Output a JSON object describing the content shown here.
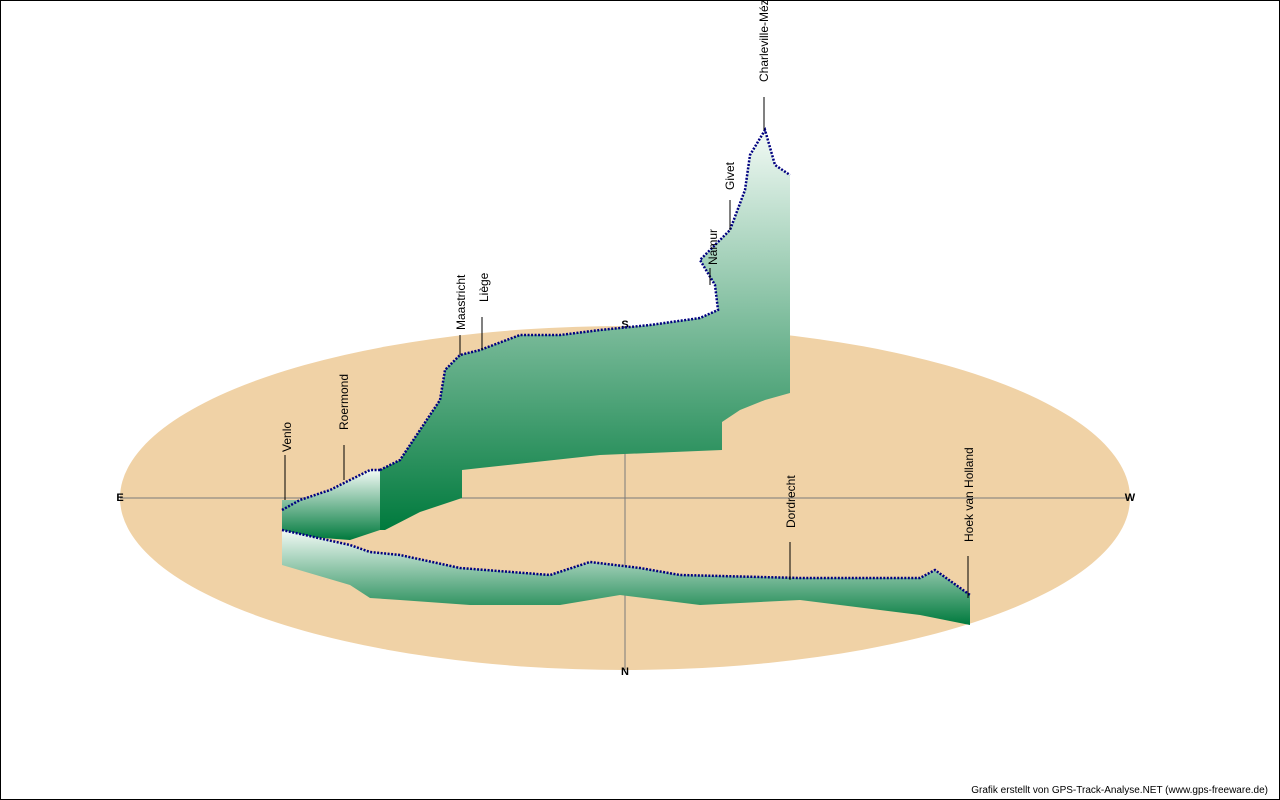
{
  "compass": {
    "east": "E",
    "west": "W",
    "south": "S",
    "north": "N"
  },
  "places": [
    "Venlo",
    "Roermond",
    "Maastricht",
    "Liège",
    "Namur",
    "Givet",
    "Charleville-Mézières",
    "Dordrecht",
    "Hoek van Holland"
  ],
  "credit": "Grafik erstellt von GPS-Track-Analyse.NET (www.gps-freeware.de)"
}
